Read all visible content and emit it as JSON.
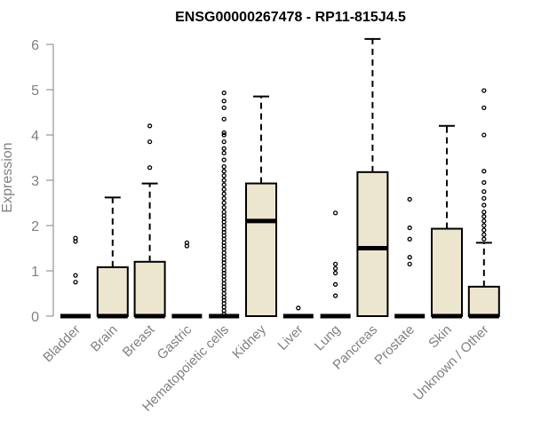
{
  "chart_data": {
    "type": "boxplot",
    "title": "ENSG00000267478 - RP11-815J4.5",
    "xlabel": "",
    "ylabel": "Expression",
    "ylim": [
      0,
      6.2
    ],
    "yticks": [
      0,
      1,
      2,
      3,
      4,
      5,
      6
    ],
    "box_fill": "#ede6cf",
    "stroke_color": "#000000",
    "categories": [
      "Bladder",
      "Brain",
      "Breast",
      "Gastric",
      "Hematopoietic cells",
      "Kidney",
      "Liver",
      "Lung",
      "Pancreas",
      "Prostate",
      "Skin",
      "Unknown / Other"
    ],
    "boxes": [
      {
        "category": "Bladder",
        "min": 0,
        "q1": 0,
        "median": 0,
        "q3": 0,
        "max": 0,
        "outliers": [
          0.75,
          0.9,
          1.65,
          1.72
        ]
      },
      {
        "category": "Brain",
        "min": 0,
        "q1": 0,
        "median": 0,
        "q3": 1.08,
        "max": 2.62,
        "outliers": []
      },
      {
        "category": "Breast",
        "min": 0,
        "q1": 0,
        "median": 0,
        "q3": 1.2,
        "max": 2.93,
        "outliers": [
          3.28,
          3.85,
          4.2
        ]
      },
      {
        "category": "Gastric",
        "min": 0,
        "q1": 0,
        "median": 0,
        "q3": 0,
        "max": 0,
        "outliers": [
          1.55,
          1.62
        ]
      },
      {
        "category": "Hematopoietic cells",
        "min": 0,
        "q1": 0,
        "median": 0,
        "q3": 0,
        "max": 0,
        "outliers": [
          0.05,
          0.12,
          0.2,
          0.28,
          0.35,
          0.42,
          0.5,
          0.58,
          0.65,
          0.72,
          0.8,
          0.88,
          0.95,
          1.02,
          1.1,
          1.18,
          1.25,
          1.32,
          1.4,
          1.48,
          1.55,
          1.62,
          1.7,
          1.78,
          1.85,
          1.92,
          2.0,
          2.08,
          2.15,
          2.22,
          2.3,
          2.4,
          2.5,
          2.6,
          2.7,
          2.8,
          2.9,
          3.0,
          3.1,
          3.2,
          3.3,
          3.45,
          3.6,
          3.7,
          3.85,
          4.0,
          4.05,
          4.35,
          4.6,
          4.75,
          4.93
        ]
      },
      {
        "category": "Kidney",
        "min": 0,
        "q1": 0,
        "median": 2.1,
        "q3": 2.93,
        "max": 4.85,
        "outliers": []
      },
      {
        "category": "Liver",
        "min": 0,
        "q1": 0,
        "median": 0,
        "q3": 0,
        "max": 0,
        "outliers": [
          0.18
        ]
      },
      {
        "category": "Lung",
        "min": 0,
        "q1": 0,
        "median": 0,
        "q3": 0,
        "max": 0,
        "outliers": [
          0.45,
          0.7,
          0.95,
          1.05,
          1.15,
          2.28
        ]
      },
      {
        "category": "Pancreas",
        "min": 0,
        "q1": 0,
        "median": 1.5,
        "q3": 3.18,
        "max": 6.12,
        "outliers": []
      },
      {
        "category": "Prostate",
        "min": 0,
        "q1": 0,
        "median": 0,
        "q3": 0,
        "max": 0,
        "outliers": [
          1.15,
          1.3,
          1.7,
          1.95,
          2.58
        ]
      },
      {
        "category": "Skin",
        "min": 0,
        "q1": 0,
        "median": 0,
        "q3": 1.93,
        "max": 4.2,
        "outliers": []
      },
      {
        "category": "Unknown / Other",
        "min": 0,
        "q1": 0,
        "median": 0,
        "q3": 0.65,
        "max": 1.62,
        "outliers": [
          1.7,
          1.8,
          1.9,
          2.0,
          2.1,
          2.2,
          2.3,
          2.45,
          2.6,
          2.75,
          2.95,
          3.2,
          4.0,
          4.6,
          4.98
        ]
      }
    ]
  }
}
